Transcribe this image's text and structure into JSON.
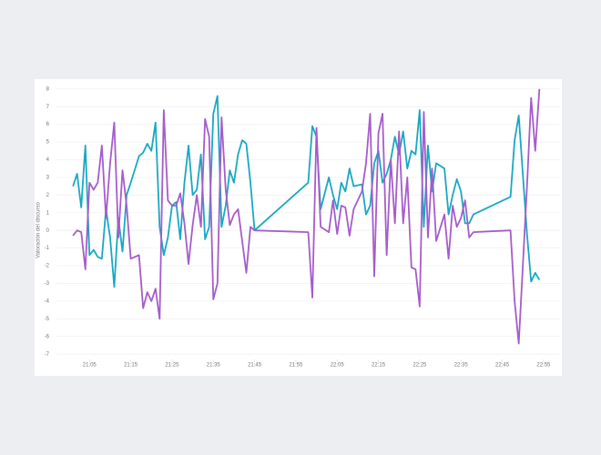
{
  "chart_data": {
    "type": "line",
    "y_label": "Valoración del discurso",
    "x": [
      "21:01",
      "21:02",
      "21:03",
      "21:04",
      "21:05",
      "21:06",
      "21:07",
      "21:08",
      "21:09",
      "21:10",
      "21:11",
      "21:12",
      "21:13",
      "21:14",
      "21:15",
      "21:17",
      "21:18",
      "21:19",
      "21:20",
      "21:21",
      "21:22",
      "21:23",
      "21:24",
      "21:25",
      "21:26",
      "21:27",
      "21:28",
      "21:29",
      "21:30",
      "21:31",
      "21:32",
      "21:33",
      "21:34",
      "21:35",
      "21:36",
      "21:37",
      "21:38",
      "21:39",
      "21:40",
      "21:41",
      "21:42",
      "21:43",
      "21:44",
      "21:45",
      "21:58",
      "21:59",
      "22:00",
      "22:01",
      "22:03",
      "22:04",
      "22:05",
      "22:06",
      "22:07",
      "22:08",
      "22:09",
      "22:11",
      "22:12",
      "22:13",
      "22:14",
      "22:15",
      "22:16",
      "22:17",
      "22:18",
      "22:19",
      "22:20",
      "22:21",
      "22:22",
      "22:23",
      "22:24",
      "22:25",
      "22:26",
      "22:27",
      "22:28",
      "22:29",
      "22:31",
      "22:32",
      "22:33",
      "22:34",
      "22:35",
      "22:36",
      "22:37",
      "22:38",
      "22:47",
      "22:48",
      "22:49",
      "22:51",
      "22:52",
      "22:53",
      "22:54"
    ],
    "series": [
      {
        "color": "#19a8c2",
        "values": [
          2.5,
          3.2,
          1.3,
          4.8,
          -1.4,
          -1.1,
          -1.5,
          -1.6,
          1.2,
          -0.4,
          -3.2,
          0.7,
          -1.2,
          2.0,
          2.7,
          4.2,
          4.4,
          4.9,
          4.5,
          6.1,
          0.2,
          -1.4,
          -0.4,
          1.4,
          1.6,
          -0.5,
          2.7,
          4.8,
          2.0,
          2.3,
          4.3,
          -0.5,
          0.2,
          6.6,
          7.6,
          0.2,
          1.4,
          3.4,
          2.7,
          4.3,
          5.1,
          4.9,
          2.7,
          0,
          2.7,
          5.9,
          5.3,
          1.2,
          3.0,
          2.0,
          1.2,
          2.7,
          2.2,
          3.5,
          2.5,
          2.6,
          0.9,
          1.4,
          3.8,
          4.5,
          2.7,
          3.2,
          4.0,
          5.3,
          4.3,
          5.6,
          3.5,
          4.5,
          4.3,
          6.8,
          0.2,
          4.8,
          2.2,
          3.8,
          3.5,
          0.9,
          2.0,
          2.9,
          2.2,
          0.4,
          0.4,
          0.9,
          1.9,
          5.1,
          6.5,
          -0.2,
          -2.9,
          -2.4,
          -2.8
        ]
      },
      {
        "color": "#a65ccb",
        "values": [
          -0.3,
          0,
          -0.1,
          -2.2,
          2.7,
          2.3,
          2.7,
          4.8,
          0.7,
          3.8,
          6.1,
          -0.4,
          3.4,
          1.4,
          -1.6,
          -1.4,
          -4.4,
          -3.5,
          -4.0,
          -3.3,
          -5.0,
          6.8,
          1.7,
          1.4,
          1.4,
          2.1,
          0.4,
          -1.9,
          0.3,
          2.0,
          0.2,
          6.3,
          5.3,
          -3.9,
          -3.0,
          6.4,
          2.3,
          0.3,
          0.9,
          1.2,
          -0.6,
          -2.4,
          0.2,
          0,
          -0.1,
          -3.8,
          5.8,
          0.2,
          -0.1,
          1.7,
          -0.2,
          1.4,
          1.3,
          -0.3,
          1.2,
          2.2,
          3.8,
          6.6,
          -2.6,
          5.5,
          6.6,
          -1.4,
          4.0,
          0.4,
          5.6,
          0.4,
          3.0,
          -2.1,
          -2.2,
          -4.3,
          6.7,
          -0.4,
          3.5,
          -0.6,
          0.9,
          -1.6,
          1.4,
          0.2,
          0.7,
          1.7,
          -0.4,
          -0.1,
          0,
          -4.0,
          -6.4,
          2.5,
          7.5,
          4.5,
          8.0
        ]
      }
    ],
    "xlim": [
      "20:57",
      "22:59"
    ],
    "xticks": [
      "21:05",
      "21:15",
      "21:25",
      "21:35",
      "21:45",
      "21:55",
      "22:05",
      "22:15",
      "22:25",
      "22:35",
      "22:45",
      "22:55"
    ],
    "ylim": [
      -7.3,
      8.4
    ],
    "yticks": [
      -7,
      -6,
      -5,
      -4,
      -3,
      -2,
      -1,
      0,
      1,
      2,
      3,
      4,
      5,
      6,
      7,
      8
    ],
    "grid": true
  }
}
